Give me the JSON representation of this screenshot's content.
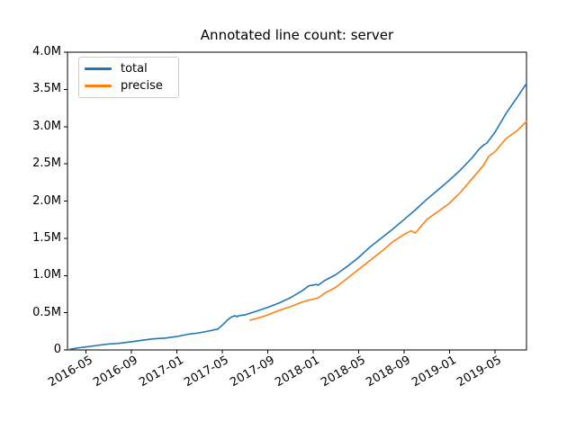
{
  "figure": {
    "background": "#ffffff"
  },
  "chart_data": {
    "type": "line",
    "title": "Annotated line count: server",
    "xlabel": "",
    "ylabel": "",
    "grid": false,
    "legend": {
      "position": "upper left",
      "entries": [
        "total",
        "precise"
      ]
    },
    "x_axis": {
      "kind": "date",
      "ticks": [
        "2016-05",
        "2016-09",
        "2017-01",
        "2017-05",
        "2017-09",
        "2018-01",
        "2018-05",
        "2018-09",
        "2019-01",
        "2019-05"
      ],
      "lim": [
        "2016-03-13",
        "2019-07-25"
      ],
      "tick_rotation_deg": 30
    },
    "y_axis": {
      "unit": "lines, millions",
      "lim_millions": [
        0,
        4
      ],
      "ticks": [
        {
          "label": "0",
          "value": 0
        },
        {
          "label": "0.5M",
          "value": 0.5
        },
        {
          "label": "1.0M",
          "value": 1.0
        },
        {
          "label": "1.5M",
          "value": 1.5
        },
        {
          "label": "2.0M",
          "value": 2.0
        },
        {
          "label": "2.5M",
          "value": 2.5
        },
        {
          "label": "3.0M",
          "value": 3.0
        },
        {
          "label": "3.5M",
          "value": 3.5
        },
        {
          "label": "4.0M",
          "value": 4.0
        }
      ]
    },
    "series": [
      {
        "name": "total",
        "color": "#1f77b4",
        "points_unit": "millions of lines",
        "points": [
          [
            "2016-03-20",
            0.01
          ],
          [
            "2016-04-15",
            0.03
          ],
          [
            "2016-05-01",
            0.04
          ],
          [
            "2016-06-01",
            0.06
          ],
          [
            "2016-07-01",
            0.08
          ],
          [
            "2016-08-01",
            0.09
          ],
          [
            "2016-09-01",
            0.11
          ],
          [
            "2016-10-01",
            0.13
          ],
          [
            "2016-11-01",
            0.15
          ],
          [
            "2016-12-01",
            0.16
          ],
          [
            "2017-01-01",
            0.18
          ],
          [
            "2017-02-01",
            0.21
          ],
          [
            "2017-03-01",
            0.23
          ],
          [
            "2017-04-01",
            0.26
          ],
          [
            "2017-04-20",
            0.28
          ],
          [
            "2017-05-01",
            0.33
          ],
          [
            "2017-05-15",
            0.4
          ],
          [
            "2017-05-25",
            0.44
          ],
          [
            "2017-06-05",
            0.46
          ],
          [
            "2017-06-10",
            0.445
          ],
          [
            "2017-06-15",
            0.46
          ],
          [
            "2017-07-01",
            0.47
          ],
          [
            "2017-08-01",
            0.52
          ],
          [
            "2017-09-01",
            0.57
          ],
          [
            "2017-10-01",
            0.63
          ],
          [
            "2017-11-01",
            0.7
          ],
          [
            "2017-12-01",
            0.79
          ],
          [
            "2017-12-20",
            0.86
          ],
          [
            "2018-01-10",
            0.88
          ],
          [
            "2018-01-15",
            0.87
          ],
          [
            "2018-02-01",
            0.93
          ],
          [
            "2018-03-01",
            1.01
          ],
          [
            "2018-04-01",
            1.12
          ],
          [
            "2018-05-01",
            1.24
          ],
          [
            "2018-06-01",
            1.38
          ],
          [
            "2018-07-01",
            1.5
          ],
          [
            "2018-08-01",
            1.62
          ],
          [
            "2018-09-01",
            1.75
          ],
          [
            "2018-10-01",
            1.88
          ],
          [
            "2018-11-01",
            2.02
          ],
          [
            "2018-12-01",
            2.15
          ],
          [
            "2019-01-01",
            2.28
          ],
          [
            "2019-02-01",
            2.42
          ],
          [
            "2019-03-01",
            2.58
          ],
          [
            "2019-03-20",
            2.7
          ],
          [
            "2019-04-01",
            2.75
          ],
          [
            "2019-04-10",
            2.78
          ],
          [
            "2019-05-01",
            2.92
          ],
          [
            "2019-06-01",
            3.18
          ],
          [
            "2019-07-01",
            3.4
          ],
          [
            "2019-07-25",
            3.58
          ]
        ]
      },
      {
        "name": "precise",
        "color": "#ff7f0e",
        "points_unit": "millions of lines",
        "points": [
          [
            "2017-07-15",
            0.4
          ],
          [
            "2017-08-01",
            0.42
          ],
          [
            "2017-09-01",
            0.47
          ],
          [
            "2017-10-01",
            0.53
          ],
          [
            "2017-11-01",
            0.58
          ],
          [
            "2017-12-01",
            0.64
          ],
          [
            "2017-12-20",
            0.67
          ],
          [
            "2018-01-15",
            0.7
          ],
          [
            "2018-02-01",
            0.76
          ],
          [
            "2018-03-01",
            0.84
          ],
          [
            "2018-04-01",
            0.96
          ],
          [
            "2018-05-01",
            1.08
          ],
          [
            "2018-06-01",
            1.2
          ],
          [
            "2018-07-01",
            1.32
          ],
          [
            "2018-08-01",
            1.45
          ],
          [
            "2018-09-01",
            1.55
          ],
          [
            "2018-09-20",
            1.6
          ],
          [
            "2018-10-01",
            1.57
          ],
          [
            "2018-10-10",
            1.62
          ],
          [
            "2018-11-01",
            1.75
          ],
          [
            "2018-12-01",
            1.86
          ],
          [
            "2019-01-01",
            1.97
          ],
          [
            "2019-02-01",
            2.12
          ],
          [
            "2019-03-01",
            2.3
          ],
          [
            "2019-04-01",
            2.48
          ],
          [
            "2019-04-15",
            2.6
          ],
          [
            "2019-05-01",
            2.66
          ],
          [
            "2019-06-01",
            2.84
          ],
          [
            "2019-07-01",
            2.95
          ],
          [
            "2019-07-25",
            3.07
          ]
        ]
      }
    ]
  }
}
